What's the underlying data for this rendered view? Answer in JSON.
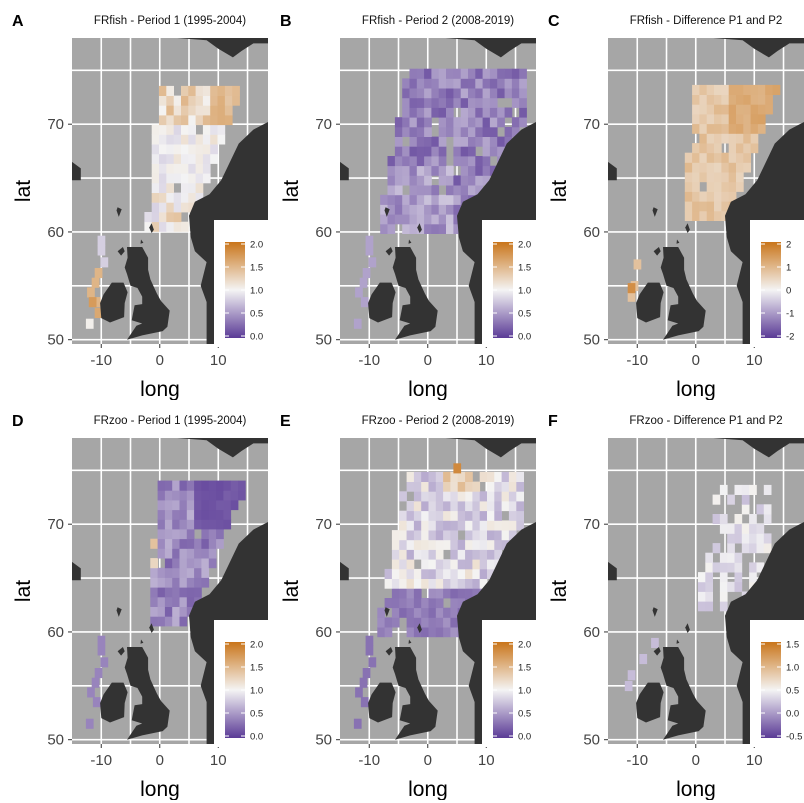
{
  "figure": {
    "colors": {
      "panel_bg": "#a6a6a6",
      "grid": "#ffffff",
      "land": "#333333",
      "scale_low": "#5a3a96",
      "scale_mid": "#f4f4f4",
      "scale_high": "#c9751a"
    },
    "panels": [
      {
        "label": "A",
        "title": "FRfish - Period 1 (1995-2004)",
        "xlabel": "long",
        "ylabel": "lat",
        "x_ticks": [
          "-10",
          "0",
          "10"
        ],
        "y_ticks": [
          "50",
          "60",
          "70"
        ],
        "legend_ticks": [
          "2.0",
          "1.5",
          "1.0",
          "0.5",
          "0.0"
        ],
        "legend_min": 0,
        "legend_max": 2,
        "mode": "A"
      },
      {
        "label": "B",
        "title": "FRfish - Period 2 (2008-2019)",
        "xlabel": "long",
        "ylabel": "lat",
        "x_ticks": [
          "-10",
          "0",
          "10"
        ],
        "y_ticks": [
          "50",
          "60",
          "70"
        ],
        "legend_ticks": [
          "2.0",
          "1.5",
          "1.0",
          "0.5",
          "0.0"
        ],
        "legend_min": 0,
        "legend_max": 2,
        "mode": "B"
      },
      {
        "label": "C",
        "title": "FRfish - Difference P1 and P2",
        "xlabel": "long",
        "ylabel": "lat",
        "x_ticks": [
          "-10",
          "0",
          "10"
        ],
        "y_ticks": [
          "50",
          "60",
          "70"
        ],
        "legend_ticks": [
          "2",
          "1",
          "0",
          "-1",
          "-2"
        ],
        "legend_min": -2,
        "legend_max": 2,
        "mode": "C"
      },
      {
        "label": "D",
        "title": "FRzoo - Period 1 (1995-2004)",
        "xlabel": "long",
        "ylabel": "lat",
        "x_ticks": [
          "-10",
          "0",
          "10"
        ],
        "y_ticks": [
          "50",
          "60",
          "70"
        ],
        "legend_ticks": [
          "2.0",
          "1.5",
          "1.0",
          "0.5",
          "0.0"
        ],
        "legend_min": 0,
        "legend_max": 2,
        "mode": "D"
      },
      {
        "label": "E",
        "title": "FRzoo - Period 2 (2008-2019)",
        "xlabel": "long",
        "ylabel": "lat",
        "x_ticks": [
          "-10",
          "0",
          "10"
        ],
        "y_ticks": [
          "50",
          "60",
          "70"
        ],
        "legend_ticks": [
          "2.0",
          "1.5",
          "1.0",
          "0.5",
          "0.0"
        ],
        "legend_min": 0,
        "legend_max": 2,
        "mode": "E"
      },
      {
        "label": "F",
        "title": "FRzoo - Difference P1 and P2",
        "xlabel": "long",
        "ylabel": "lat",
        "x_ticks": [
          "-10",
          "0",
          "10"
        ],
        "y_ticks": [
          "50",
          "60",
          "70"
        ],
        "legend_ticks": [
          "1.5",
          "1.0",
          "0.5",
          "0.0",
          "-0.5"
        ],
        "legend_min": -0.5,
        "legend_max": 1.5,
        "mode": "F"
      }
    ]
  }
}
